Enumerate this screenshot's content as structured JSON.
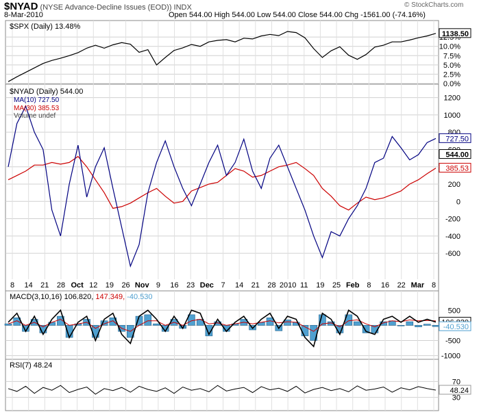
{
  "header": {
    "symbol": "$NYAD",
    "title": "(NYSE Advance-Decline Issues (EOD))",
    "exchange": "INDX",
    "date": "8-Mar-2010",
    "ohlc": "Open 544.00  High 544.00  Low 544.00  Close 544.00  Chg -1561.00 (-74.16%)",
    "watermark": "© StockCharts.com"
  },
  "colors": {
    "price": "#000000",
    "ma10": "#000080",
    "ma30": "#cc0000",
    "macd": "#000000",
    "signal": "#cc0000",
    "hist": "#4fa0d0",
    "grid": "#c8c8c8"
  },
  "chart_data": [
    {
      "type": "line",
      "title": "$SPX (Daily) 13.48%",
      "ylim": [
        0,
        14
      ],
      "yticks": [
        "0.0%",
        "2.5%",
        "5.0%",
        "7.5%",
        "10.0%",
        "12.5%"
      ],
      "last_label": "1138.50",
      "series": [
        {
          "name": "$SPX",
          "values": [
            0.5,
            1.8,
            3,
            4.2,
            5.4,
            6.2,
            6.8,
            7.5,
            8.3,
            9.5,
            10.3,
            9.5,
            10.4,
            11,
            10.6,
            8.4,
            9.1,
            5,
            7,
            8.9,
            9.6,
            10.5,
            10,
            11.2,
            11.6,
            11.8,
            11.2,
            12.2,
            12,
            12.8,
            13.2,
            12.9,
            14,
            13.7,
            12.3,
            9.4,
            7,
            8.8,
            9.9,
            7.6,
            6.5,
            7.8,
            9.8,
            10.3,
            11.2,
            11.2,
            11.7,
            12.3,
            12.8,
            13.48
          ]
        }
      ]
    },
    {
      "type": "line",
      "title": "$NYAD (Daily) 544.00",
      "ylim": [
        -900,
        1300
      ],
      "yticks": [
        "-600",
        "-400",
        "-200",
        "0",
        "200",
        "400",
        "600",
        "800",
        "1000",
        "1200"
      ],
      "value_labels": [
        "727.50",
        "544.00",
        "385.53"
      ],
      "legend": [
        "MA(10) 727.50",
        "MA(30) 385.53",
        "Volume undef"
      ],
      "x_labels": [
        "8",
        "14",
        "21",
        "28",
        "Oct",
        "12",
        "19",
        "26",
        "Nov",
        "9",
        "16",
        "23",
        "Dec",
        "7",
        "14",
        "21",
        "28",
        "2010",
        "11",
        "19",
        "25",
        "Feb",
        "8",
        "16",
        "22",
        "Mar",
        "8"
      ],
      "series": [
        {
          "name": "MA(10)",
          "values": [
            400,
            900,
            1100,
            800,
            600,
            -100,
            -400,
            200,
            650,
            50,
            400,
            620,
            150,
            -300,
            -750,
            -500,
            100,
            450,
            700,
            400,
            150,
            -50,
            200,
            450,
            650,
            300,
            450,
            720,
            350,
            150,
            500,
            650,
            400,
            150,
            -100,
            -400,
            -650,
            -350,
            -400,
            -200,
            -50,
            150,
            450,
            500,
            750,
            620,
            480,
            540,
            680,
            727.5
          ]
        },
        {
          "name": "MA(30)",
          "values": [
            250,
            300,
            350,
            420,
            420,
            450,
            430,
            450,
            520,
            400,
            250,
            100,
            -80,
            -60,
            -20,
            40,
            100,
            150,
            60,
            -20,
            0,
            120,
            160,
            200,
            220,
            300,
            380,
            350,
            280,
            300,
            350,
            400,
            420,
            450,
            380,
            300,
            150,
            60,
            -50,
            -100,
            -20,
            50,
            20,
            40,
            80,
            120,
            200,
            250,
            320,
            385.53
          ]
        }
      ]
    },
    {
      "type": "line",
      "title": "MACD(3,10,16) 106.820, 147.349, -40.530",
      "ylim": [
        -1100,
        800
      ],
      "yticks": [
        "-1000",
        "-500",
        "0",
        "500"
      ],
      "value_labels": [
        "106.820",
        "-40.530"
      ],
      "series": [
        {
          "name": "MACD(3,10,16)",
          "values": [
            100,
            400,
            -200,
            300,
            -300,
            200,
            500,
            -400,
            100,
            300,
            -500,
            200,
            400,
            -300,
            -600,
            300,
            500,
            200,
            -200,
            300,
            -100,
            500,
            400,
            -300,
            200,
            -200,
            100,
            300,
            -100,
            200,
            400,
            -100,
            300,
            200,
            -400,
            -700,
            400,
            200,
            -300,
            500,
            300,
            -200,
            -300,
            200,
            300,
            100,
            300,
            100,
            200,
            106.82
          ]
        },
        {
          "name": "Signal",
          "values": [
            50,
            150,
            0,
            100,
            -50,
            100,
            200,
            0,
            50,
            100,
            -100,
            50,
            150,
            -100,
            -200,
            0,
            150,
            150,
            0,
            100,
            0,
            150,
            200,
            50,
            80,
            0,
            50,
            100,
            50,
            100,
            150,
            80,
            120,
            100,
            -50,
            -200,
            50,
            80,
            -50,
            150,
            180,
            50,
            -50,
            80,
            150,
            120,
            180,
            150,
            160,
            147.349
          ]
        },
        {
          "name": "Histogram",
          "values": [
            50,
            250,
            -200,
            200,
            -250,
            100,
            300,
            -400,
            50,
            200,
            -400,
            150,
            250,
            -200,
            -400,
            300,
            350,
            50,
            -200,
            200,
            -100,
            350,
            200,
            -350,
            120,
            -200,
            50,
            200,
            -150,
            100,
            250,
            -180,
            180,
            100,
            -350,
            -500,
            350,
            120,
            -250,
            350,
            120,
            -250,
            -250,
            120,
            150,
            -20,
            120,
            -50,
            40,
            -40.53
          ]
        }
      ]
    },
    {
      "type": "line",
      "title": "RSI(7) 48.24",
      "ylim": [
        0,
        100
      ],
      "yticks": [
        "30",
        "70"
      ],
      "value_labels": [
        "48.24"
      ],
      "series": [
        {
          "name": "RSI(7)",
          "values": [
            52,
            45,
            58,
            40,
            55,
            48,
            60,
            42,
            50,
            56,
            38,
            52,
            47,
            55,
            43,
            58,
            50,
            45,
            54,
            40,
            56,
            48,
            52,
            44,
            60,
            46,
            51,
            55,
            42,
            57,
            49,
            53,
            45,
            58,
            41,
            50,
            55,
            47,
            52,
            44,
            59,
            48,
            51,
            56,
            43,
            54,
            49,
            57,
            52,
            48.24
          ]
        }
      ]
    }
  ]
}
